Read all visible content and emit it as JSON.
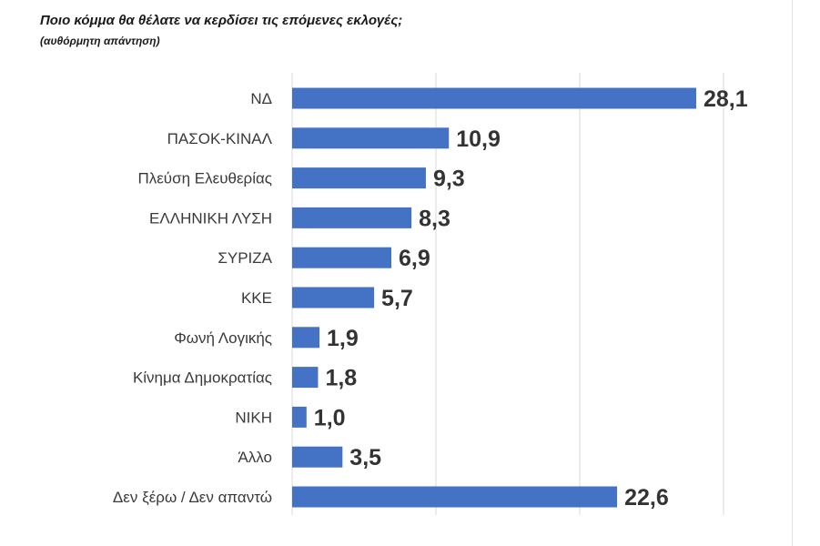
{
  "chart_data": {
    "type": "bar",
    "orientation": "horizontal",
    "title": "Ποιο κόμμα θα θέλατε να κερδίσει τις επόμενες εκλογές;",
    "subtitle": "(αυθόρμητη απάντηση)",
    "categories": [
      "ΝΔ",
      "ΠΑΣΟΚ-ΚΙΝΑΛ",
      "Πλεύση Ελευθερίας",
      "ΕΛΛΗΝΙΚΗ ΛΥΣΗ",
      "ΣΥΡΙΖΑ",
      "ΚΚΕ",
      "Φωνή Λογικής",
      "Κίνημα Δημοκρατίας",
      "ΝΙΚΗ",
      "Άλλο",
      "Δεν ξέρω / Δεν απαντώ"
    ],
    "values": [
      28.1,
      10.9,
      9.3,
      8.3,
      6.9,
      5.7,
      1.9,
      1.8,
      1.0,
      3.5,
      22.6
    ],
    "value_labels": [
      "28,1",
      "10,9",
      "9,3",
      "8,3",
      "6,9",
      "5,7",
      "1,9",
      "1,8",
      "1,0",
      "3,5",
      "22,6"
    ],
    "xlim": [
      0,
      30
    ],
    "grid": true,
    "legend": "none",
    "bar_color": "#4472c4"
  }
}
